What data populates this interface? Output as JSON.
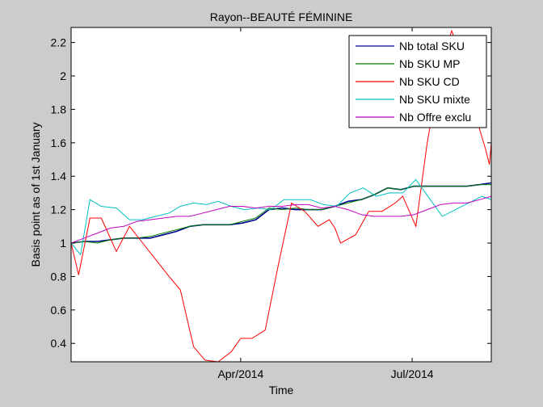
{
  "chart_data": {
    "type": "line",
    "title": "Rayon--BEAUTÉ FÉMININE",
    "xlabel": "Time",
    "ylabel": "Basis point as of 1st January",
    "xlim": [
      "2014-01-01",
      "2014-08-12"
    ],
    "ylim": [
      0.29,
      2.29
    ],
    "yticks": [
      0.4,
      0.6,
      0.8,
      1,
      1.2,
      1.4,
      1.6,
      1.8,
      2,
      2.2
    ],
    "ytick_labels": [
      "0.4",
      "0.6",
      "0.8",
      "1",
      "1.2",
      "1.4",
      "1.6",
      "1.8",
      "2",
      "2.2"
    ],
    "xticks": [
      "2014-04-01",
      "2014-07-01"
    ],
    "xtick_labels": [
      "Apr/2014",
      "Jul/2014"
    ],
    "grid": false,
    "legend_position": "top-right",
    "series": [
      {
        "name": "Nb total SKU",
        "color": "#00008f",
        "points": [
          [
            "2014-01-01",
            1.0
          ],
          [
            "2014-01-08",
            1.01
          ],
          [
            "2014-01-15",
            1.01
          ],
          [
            "2014-01-22",
            1.02
          ],
          [
            "2014-01-29",
            1.03
          ],
          [
            "2014-02-05",
            1.03
          ],
          [
            "2014-02-12",
            1.03
          ],
          [
            "2014-02-19",
            1.05
          ],
          [
            "2014-02-26",
            1.07
          ],
          [
            "2014-03-05",
            1.1
          ],
          [
            "2014-03-12",
            1.11
          ],
          [
            "2014-03-19",
            1.11
          ],
          [
            "2014-03-26",
            1.11
          ],
          [
            "2014-04-02",
            1.12
          ],
          [
            "2014-04-09",
            1.14
          ],
          [
            "2014-04-16",
            1.2
          ],
          [
            "2014-04-23",
            1.21
          ],
          [
            "2014-04-30",
            1.2
          ],
          [
            "2014-05-07",
            1.2
          ],
          [
            "2014-05-14",
            1.2
          ],
          [
            "2014-05-21",
            1.22
          ],
          [
            "2014-05-28",
            1.25
          ],
          [
            "2014-06-04",
            1.26
          ],
          [
            "2014-06-11",
            1.29
          ],
          [
            "2014-06-18",
            1.33
          ],
          [
            "2014-06-25",
            1.32
          ],
          [
            "2014-07-02",
            1.34
          ],
          [
            "2014-07-09",
            1.34
          ],
          [
            "2014-07-16",
            1.34
          ],
          [
            "2014-07-23",
            1.34
          ],
          [
            "2014-07-30",
            1.34
          ],
          [
            "2014-08-06",
            1.35
          ],
          [
            "2014-08-12",
            1.36
          ]
        ]
      },
      {
        "name": "Nb SKU MP",
        "color": "#007f00",
        "points": [
          [
            "2014-01-01",
            1.0
          ],
          [
            "2014-01-08",
            1.01
          ],
          [
            "2014-01-15",
            1.0
          ],
          [
            "2014-01-22",
            1.02
          ],
          [
            "2014-01-29",
            1.03
          ],
          [
            "2014-02-05",
            1.03
          ],
          [
            "2014-02-12",
            1.04
          ],
          [
            "2014-02-19",
            1.06
          ],
          [
            "2014-02-26",
            1.08
          ],
          [
            "2014-03-05",
            1.1
          ],
          [
            "2014-03-12",
            1.11
          ],
          [
            "2014-03-19",
            1.11
          ],
          [
            "2014-03-26",
            1.11
          ],
          [
            "2014-04-02",
            1.13
          ],
          [
            "2014-04-09",
            1.15
          ],
          [
            "2014-04-16",
            1.21
          ],
          [
            "2014-04-23",
            1.2
          ],
          [
            "2014-04-30",
            1.21
          ],
          [
            "2014-05-07",
            1.2
          ],
          [
            "2014-05-14",
            1.2
          ],
          [
            "2014-05-21",
            1.22
          ],
          [
            "2014-05-28",
            1.24
          ],
          [
            "2014-06-04",
            1.26
          ],
          [
            "2014-06-11",
            1.29
          ],
          [
            "2014-06-18",
            1.33
          ],
          [
            "2014-06-25",
            1.32
          ],
          [
            "2014-07-02",
            1.34
          ],
          [
            "2014-07-09",
            1.34
          ],
          [
            "2014-07-16",
            1.34
          ],
          [
            "2014-07-23",
            1.34
          ],
          [
            "2014-07-30",
            1.34
          ],
          [
            "2014-08-06",
            1.35
          ],
          [
            "2014-08-12",
            1.35
          ]
        ]
      },
      {
        "name": "Nb SKU CD",
        "color": "#ff0000",
        "points": [
          [
            "2014-01-01",
            1.0
          ],
          [
            "2014-01-05",
            0.81
          ],
          [
            "2014-01-11",
            1.15
          ],
          [
            "2014-01-17",
            1.15
          ],
          [
            "2014-01-25",
            0.95
          ],
          [
            "2014-02-01",
            1.1
          ],
          [
            "2014-02-08",
            1.0
          ],
          [
            "2014-02-15",
            0.9
          ],
          [
            "2014-02-22",
            0.8
          ],
          [
            "2014-02-28",
            0.72
          ],
          [
            "2014-03-07",
            0.38
          ],
          [
            "2014-03-13",
            0.3
          ],
          [
            "2014-03-20",
            0.29
          ],
          [
            "2014-03-27",
            0.35
          ],
          [
            "2014-04-01",
            0.43
          ],
          [
            "2014-04-07",
            0.43
          ],
          [
            "2014-04-14",
            0.48
          ],
          [
            "2014-04-21",
            0.87
          ],
          [
            "2014-04-28",
            1.24
          ],
          [
            "2014-05-05",
            1.19
          ],
          [
            "2014-05-12",
            1.1
          ],
          [
            "2014-05-18",
            1.14
          ],
          [
            "2014-05-21",
            1.09
          ],
          [
            "2014-05-24",
            1.0
          ],
          [
            "2014-06-01",
            1.05
          ],
          [
            "2014-06-08",
            1.19
          ],
          [
            "2014-06-15",
            1.19
          ],
          [
            "2014-06-22",
            1.24
          ],
          [
            "2014-06-26",
            1.28
          ],
          [
            "2014-07-03",
            1.1
          ],
          [
            "2014-07-09",
            1.6
          ],
          [
            "2014-07-16",
            2.05
          ],
          [
            "2014-07-22",
            2.27
          ],
          [
            "2014-07-29",
            2.05
          ],
          [
            "2014-08-04",
            1.75
          ],
          [
            "2014-08-09",
            1.56
          ],
          [
            "2014-08-11",
            1.47
          ],
          [
            "2014-08-12",
            1.6
          ]
        ]
      },
      {
        "name": "Nb SKU mixte",
        "color": "#00bfbf",
        "points": [
          [
            "2014-01-01",
            1.0
          ],
          [
            "2014-01-06",
            0.93
          ],
          [
            "2014-01-11",
            1.26
          ],
          [
            "2014-01-17",
            1.22
          ],
          [
            "2014-01-25",
            1.21
          ],
          [
            "2014-02-01",
            1.14
          ],
          [
            "2014-02-08",
            1.14
          ],
          [
            "2014-02-15",
            1.16
          ],
          [
            "2014-02-22",
            1.18
          ],
          [
            "2014-02-28",
            1.22
          ],
          [
            "2014-03-07",
            1.24
          ],
          [
            "2014-03-14",
            1.23
          ],
          [
            "2014-03-20",
            1.25
          ],
          [
            "2014-03-27",
            1.22
          ],
          [
            "2014-04-03",
            1.2
          ],
          [
            "2014-04-10",
            1.21
          ],
          [
            "2014-04-17",
            1.2
          ],
          [
            "2014-04-24",
            1.26
          ],
          [
            "2014-05-01",
            1.26
          ],
          [
            "2014-05-08",
            1.26
          ],
          [
            "2014-05-15",
            1.23
          ],
          [
            "2014-05-22",
            1.22
          ],
          [
            "2014-05-29",
            1.3
          ],
          [
            "2014-06-05",
            1.33
          ],
          [
            "2014-06-12",
            1.28
          ],
          [
            "2014-06-19",
            1.3
          ],
          [
            "2014-06-26",
            1.3
          ],
          [
            "2014-07-03",
            1.38
          ],
          [
            "2014-07-10",
            1.27
          ],
          [
            "2014-07-17",
            1.16
          ],
          [
            "2014-07-24",
            1.2
          ],
          [
            "2014-07-31",
            1.24
          ],
          [
            "2014-08-07",
            1.28
          ],
          [
            "2014-08-12",
            1.26
          ]
        ]
      },
      {
        "name": "Nb Offre exclu",
        "color": "#bf00bf",
        "points": [
          [
            "2014-01-01",
            1.0
          ],
          [
            "2014-01-08",
            1.03
          ],
          [
            "2014-01-15",
            1.06
          ],
          [
            "2014-01-22",
            1.09
          ],
          [
            "2014-01-29",
            1.1
          ],
          [
            "2014-02-05",
            1.13
          ],
          [
            "2014-02-12",
            1.14
          ],
          [
            "2014-02-19",
            1.15
          ],
          [
            "2014-02-26",
            1.16
          ],
          [
            "2014-03-05",
            1.16
          ],
          [
            "2014-03-12",
            1.18
          ],
          [
            "2014-03-19",
            1.2
          ],
          [
            "2014-03-26",
            1.22
          ],
          [
            "2014-04-02",
            1.22
          ],
          [
            "2014-04-09",
            1.21
          ],
          [
            "2014-04-16",
            1.22
          ],
          [
            "2014-04-23",
            1.22
          ],
          [
            "2014-04-30",
            1.23
          ],
          [
            "2014-05-07",
            1.23
          ],
          [
            "2014-05-14",
            1.21
          ],
          [
            "2014-05-21",
            1.22
          ],
          [
            "2014-05-28",
            1.2
          ],
          [
            "2014-06-04",
            1.17
          ],
          [
            "2014-06-11",
            1.16
          ],
          [
            "2014-06-18",
            1.16
          ],
          [
            "2014-06-25",
            1.16
          ],
          [
            "2014-07-02",
            1.17
          ],
          [
            "2014-07-09",
            1.2
          ],
          [
            "2014-07-16",
            1.23
          ],
          [
            "2014-07-23",
            1.24
          ],
          [
            "2014-07-30",
            1.24
          ],
          [
            "2014-08-06",
            1.26
          ],
          [
            "2014-08-12",
            1.28
          ]
        ]
      }
    ]
  }
}
